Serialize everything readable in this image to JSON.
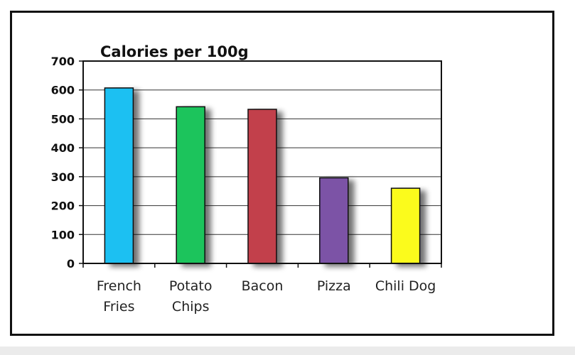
{
  "chart_data": {
    "type": "bar",
    "title": "Calories per 100g",
    "xlabel": "",
    "ylabel": "",
    "categories": [
      "French Fries",
      "Potato Chips",
      "Bacon",
      "Pizza",
      "Chili Dog"
    ],
    "category_lines": [
      [
        "French",
        "Fries"
      ],
      [
        "Potato",
        "Chips"
      ],
      [
        "Bacon"
      ],
      [
        "Pizza"
      ],
      [
        "Chili Dog"
      ]
    ],
    "values": [
      607,
      542,
      533,
      296,
      260
    ],
    "ylim": [
      0,
      700
    ],
    "yticks": [
      0,
      100,
      200,
      300,
      400,
      500,
      600,
      700
    ],
    "grid": true,
    "colors": [
      "#1ec0f2",
      "#1ec45c",
      "#c2404c",
      "#7b53a6",
      "#fbfb1e"
    ]
  }
}
